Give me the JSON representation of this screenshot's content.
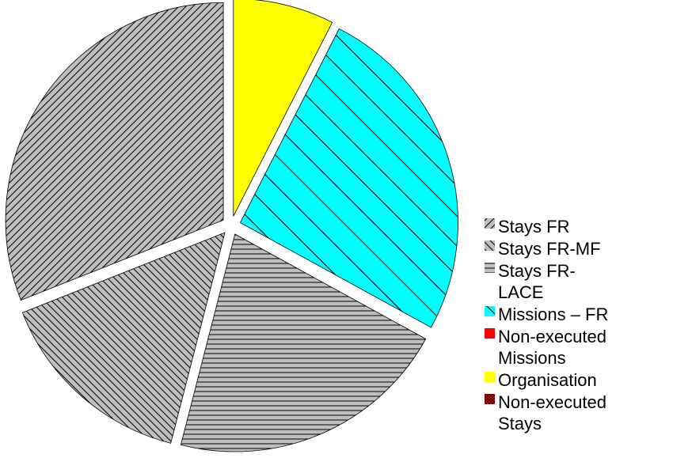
{
  "chart_data": {
    "type": "pie",
    "title": "",
    "start_angle_deg": 0,
    "direction": "clockwise",
    "exploded": true,
    "legend_position": "right",
    "slices": [
      {
        "label_lines": [
          "Organisation"
        ],
        "value": 7.5,
        "color": "#FFFF00",
        "pattern": "none"
      },
      {
        "label_lines": [
          "Missions – FR"
        ],
        "value": 25.5,
        "color": "#00FFFF",
        "pattern": "diagonal-wide"
      },
      {
        "label_lines": [
          "Stays FR-",
          "LACE"
        ],
        "value": 21.0,
        "color": "#BFBFBF",
        "pattern": "horizontal"
      },
      {
        "label_lines": [
          "Stays FR-MF"
        ],
        "value": 15.0,
        "color": "#BFBFBF",
        "pattern": "diagonal-down"
      },
      {
        "label_lines": [
          "Stays FR"
        ],
        "value": 31.0,
        "color": "#BFBFBF",
        "pattern": "diagonal-up"
      },
      {
        "label_lines": [
          "Non-executed",
          "Missions"
        ],
        "value": 0,
        "color": "#FF0000",
        "pattern": "none"
      },
      {
        "label_lines": [
          "Non-executed",
          "Stays"
        ],
        "value": 0,
        "color": "#FF0000",
        "pattern": "crosshatch"
      }
    ],
    "legend_order": [
      4,
      3,
      2,
      1,
      5,
      0,
      6
    ]
  }
}
